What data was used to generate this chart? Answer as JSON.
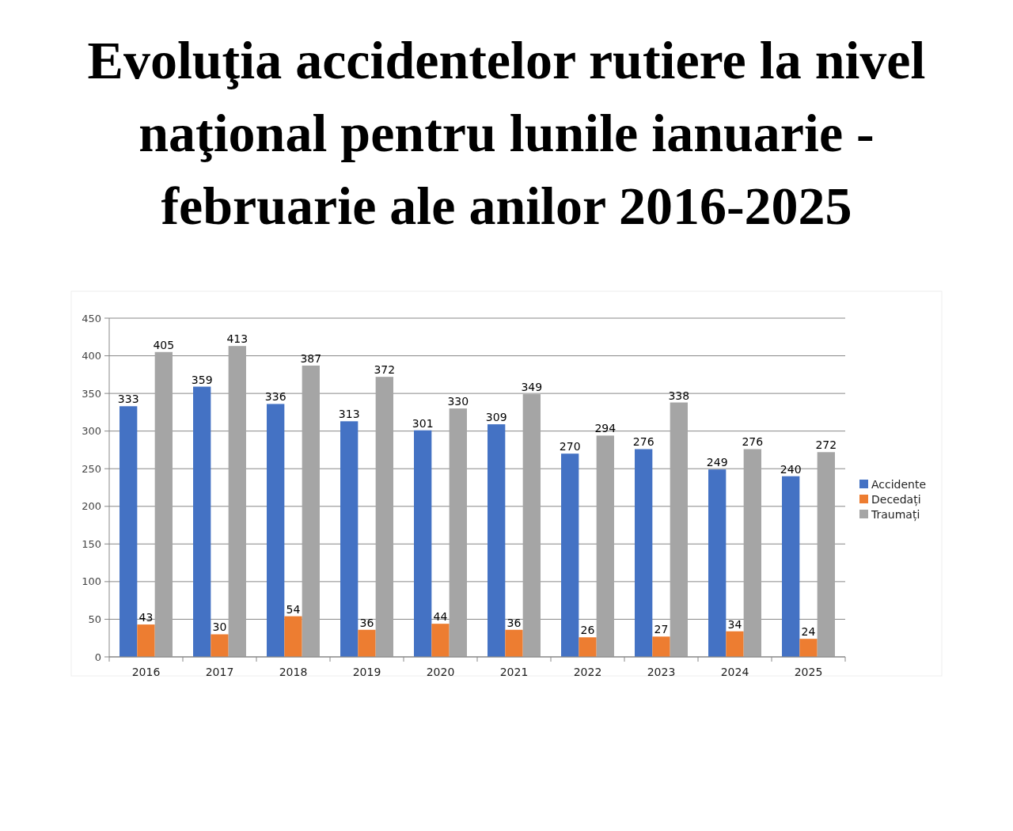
{
  "chart_data": {
    "type": "bar",
    "title": "Evoluţia accidentelor rutiere la nivel naţional pentru lunile ianuarie - februarie ale anilor 2016-2025",
    "categories": [
      "2016",
      "2017",
      "2018",
      "2019",
      "2020",
      "2021",
      "2022",
      "2023",
      "2024",
      "2025"
    ],
    "series": [
      {
        "name": "Accidente",
        "color": "#4472c4",
        "values": [
          333,
          359,
          336,
          313,
          301,
          309,
          270,
          276,
          249,
          240
        ]
      },
      {
        "name": "Decedați",
        "color": "#ed7d31",
        "values": [
          43,
          30,
          54,
          36,
          44,
          36,
          26,
          27,
          34,
          24
        ]
      },
      {
        "name": "Traumați",
        "color": "#a5a5a5",
        "values": [
          405,
          413,
          387,
          372,
          330,
          349,
          294,
          338,
          276,
          272
        ]
      }
    ],
    "ylim": [
      0,
      450
    ],
    "yticks": [
      0,
      50,
      100,
      150,
      200,
      250,
      300,
      350,
      400,
      450
    ],
    "grid": "y",
    "legend": "right",
    "data_labels": true
  }
}
